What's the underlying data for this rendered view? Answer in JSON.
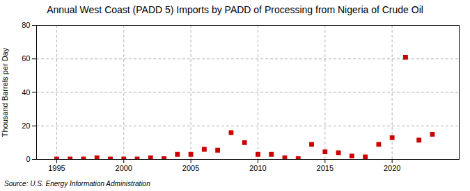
{
  "chart_data": {
    "type": "scatter",
    "title": "Annual West Coast (PADD 5) Imports by PADD of Processing from Nigeria of Crude Oil",
    "ylabel": "Thousand Barrels per Day",
    "source": "Source: U.S. Energy Information Administration",
    "x": [
      1995,
      1996,
      1997,
      1998,
      1999,
      2000,
      2001,
      2002,
      2003,
      2004,
      2005,
      2006,
      2007,
      2008,
      2009,
      2010,
      2011,
      2012,
      2013,
      2014,
      2015,
      2016,
      2017,
      2018,
      2019,
      2020,
      2021,
      2022,
      2023
    ],
    "values": [
      0.2,
      0.2,
      0.2,
      1.0,
      0.2,
      0.2,
      0.2,
      1.0,
      0.5,
      3.0,
      3.0,
      6.0,
      5.5,
      16.0,
      10.0,
      3.0,
      3.0,
      1.0,
      0.5,
      9.0,
      4.5,
      4.0,
      2.0,
      1.5,
      9.0,
      13.0,
      61.0,
      11.5,
      15.0
    ],
    "color": "#cc0000",
    "marker": "square",
    "xlim": [
      1993.5,
      2025
    ],
    "ylim": [
      0,
      80
    ],
    "xticks": [
      1995,
      2000,
      2005,
      2010,
      2015,
      2020
    ],
    "yticks": [
      0,
      20,
      40,
      60,
      80
    ],
    "grid": true
  }
}
